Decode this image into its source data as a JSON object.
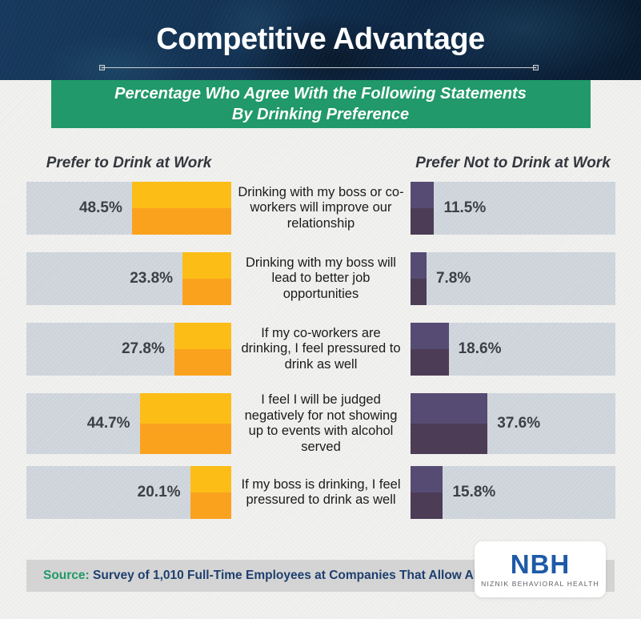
{
  "header": {
    "title": "Competitive Advantage"
  },
  "banner": {
    "line1": "Percentage Who Agree With the Following Statements",
    "line2": "By Drinking Preference"
  },
  "columns": {
    "left": "Prefer to Drink at Work",
    "right": "Prefer Not to Drink at Work"
  },
  "chart_data": {
    "type": "bar",
    "orientation": "horizontal-mirrored",
    "title": "Percentage Who Agree With the Following Statements By Drinking Preference",
    "unit": "%",
    "xlim": [
      0,
      100
    ],
    "grid": false,
    "legend_position": "column-headers",
    "categories": [
      "Drinking with my boss or co-workers will improve our relationship",
      "Drinking with my boss will lead to better job opportunities",
      "If my co-workers are drinking, I feel pressured to drink as well",
      "I feel I will be judged negatively for not showing up to events with alcohol served",
      "If my boss is drinking, I feel pressured to drink as well"
    ],
    "series": [
      {
        "name": "Prefer to Drink at Work",
        "values": [
          48.5,
          23.8,
          27.8,
          44.7,
          20.1
        ],
        "bar_color_top": "#fdbd17",
        "bar_color_bottom": "#faa21e",
        "anchor": "right"
      },
      {
        "name": "Prefer Not to Drink at Work",
        "values": [
          11.5,
          7.8,
          18.6,
          37.6,
          15.8
        ],
        "bar_color_top": "#564b73",
        "bar_color_bottom": "#4c3c55",
        "anchor": "left"
      }
    ],
    "track_color": "#cdd3da"
  },
  "footer": {
    "source_label": "Source:",
    "source_text": " Survey of 1,010 Full-Time Employees at Companies That Allow Alcohol"
  },
  "logo": {
    "brand": "NBH",
    "subtext": "NIZNIK BEHAVIORAL HEALTH"
  },
  "palette": {
    "header_navy": "#122f4e",
    "banner_green": "#21996a",
    "page_background": "#f1f1ef",
    "value_label": "#3b3f46",
    "source_navy": "#1e3f6e",
    "logo_blue": "#1e5aa7",
    "footer_bar_gray": "#d4d4d4"
  }
}
